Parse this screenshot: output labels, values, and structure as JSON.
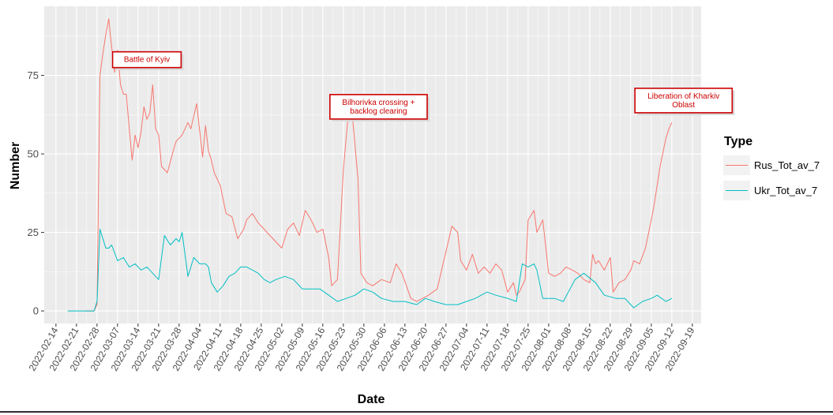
{
  "chart_data": {
    "type": "line",
    "xlabel": "Date",
    "ylabel": "Number",
    "x_ticks": [
      "2022-02-14",
      "2022-02-21",
      "2022-02-28",
      "2022-03-07",
      "2022-03-14",
      "2022-03-21",
      "2022-03-28",
      "2022-04-04",
      "2022-04-11",
      "2022-04-18",
      "2022-04-25",
      "2022-05-02",
      "2022-05-09",
      "2022-05-16",
      "2022-05-23",
      "2022-05-30",
      "2022-06-06",
      "2022-06-13",
      "2022-06-20",
      "2022-06-27",
      "2022-07-04",
      "2022-07-11",
      "2022-07-18",
      "2022-07-25",
      "2022-08-01",
      "2022-08-08",
      "2022-08-15",
      "2022-08-22",
      "2022-08-29",
      "2022-09-05",
      "2022-09-12",
      "2022-09-19"
    ],
    "y_ticks": [
      0,
      25,
      50,
      75
    ],
    "xlim": [
      "2022-02-10",
      "2022-09-22"
    ],
    "ylim": [
      -4,
      97
    ],
    "grid": true,
    "legend": {
      "title": "Type",
      "position": "right",
      "entries": [
        "Rus_Tot_av_7",
        "Ukr_Tot_av_7"
      ]
    },
    "colors": {
      "Rus_Tot_av_7": "#F8766D",
      "Ukr_Tot_av_7": "#00BFC4"
    },
    "annotations": [
      {
        "text": "Battle of Kyiv",
        "x": "2022-03-17",
        "y": 80
      },
      {
        "text": "Bilhorivka crossing +\nbacklog clearing",
        "x": "2022-06-04",
        "y": 65
      },
      {
        "text": "Liberation of Kharkiv\nOblast",
        "x": "2022-09-16",
        "y": 67
      }
    ],
    "series": [
      {
        "name": "Rus_Tot_av_7",
        "x": [
          "2022-02-24",
          "2022-02-27",
          "2022-02-28",
          "2022-03-01",
          "2022-03-02",
          "2022-03-03",
          "2022-03-04",
          "2022-03-05",
          "2022-03-06",
          "2022-03-07",
          "2022-03-08",
          "2022-03-09",
          "2022-03-10",
          "2022-03-11",
          "2022-03-12",
          "2022-03-13",
          "2022-03-14",
          "2022-03-15",
          "2022-03-16",
          "2022-03-17",
          "2022-03-18",
          "2022-03-19",
          "2022-03-20",
          "2022-03-21",
          "2022-03-22",
          "2022-03-24",
          "2022-03-26",
          "2022-03-27",
          "2022-03-29",
          "2022-03-31",
          "2022-04-01",
          "2022-04-03",
          "2022-04-05",
          "2022-04-06",
          "2022-04-07",
          "2022-04-08",
          "2022-04-09",
          "2022-04-11",
          "2022-04-13",
          "2022-04-15",
          "2022-04-17",
          "2022-04-19",
          "2022-04-20",
          "2022-04-22",
          "2022-04-24",
          "2022-04-26",
          "2022-04-28",
          "2022-04-30",
          "2022-05-02",
          "2022-05-04",
          "2022-05-06",
          "2022-05-08",
          "2022-05-10",
          "2022-05-12",
          "2022-05-14",
          "2022-05-16",
          "2022-05-18",
          "2022-05-19",
          "2022-05-21",
          "2022-05-23",
          "2022-05-25",
          "2022-05-26",
          "2022-05-28",
          "2022-05-29",
          "2022-05-31",
          "2022-06-02",
          "2022-06-05",
          "2022-06-08",
          "2022-06-10",
          "2022-06-12",
          "2022-06-15",
          "2022-06-17",
          "2022-06-19",
          "2022-06-21",
          "2022-06-24",
          "2022-06-27",
          "2022-06-29",
          "2022-07-01",
          "2022-07-02",
          "2022-07-04",
          "2022-07-06",
          "2022-07-08",
          "2022-07-10",
          "2022-07-12",
          "2022-07-14",
          "2022-07-16",
          "2022-07-18",
          "2022-07-20",
          "2022-07-21",
          "2022-07-22",
          "2022-07-24",
          "2022-07-25",
          "2022-07-27",
          "2022-07-28",
          "2022-07-30",
          "2022-08-01",
          "2022-08-03",
          "2022-08-05",
          "2022-08-07",
          "2022-08-09",
          "2022-08-11",
          "2022-08-13",
          "2022-08-15",
          "2022-08-16",
          "2022-08-17",
          "2022-08-18",
          "2022-08-20",
          "2022-08-22",
          "2022-08-23",
          "2022-08-25",
          "2022-08-27",
          "2022-08-29",
          "2022-08-30",
          "2022-09-01",
          "2022-09-03",
          "2022-09-05",
          "2022-09-06",
          "2022-09-08",
          "2022-09-10",
          "2022-09-11",
          "2022-09-12"
        ],
        "values": [
          0,
          0,
          2,
          75,
          82,
          88,
          93,
          84,
          76,
          83,
          72,
          69,
          69,
          58,
          48,
          56,
          52,
          57,
          65,
          61,
          63,
          72,
          58,
          56,
          46,
          44,
          51,
          54,
          56,
          60,
          58,
          66,
          49,
          59,
          51,
          48,
          44,
          40,
          31,
          30,
          23,
          26,
          29,
          31,
          28,
          26,
          24,
          22,
          20,
          26,
          28,
          24,
          32,
          29,
          25,
          26,
          17,
          8,
          10,
          45,
          66,
          63,
          42,
          12,
          9,
          8,
          10,
          9,
          15,
          12,
          4,
          3,
          4,
          5,
          7,
          19,
          27,
          25,
          16,
          13,
          18,
          12,
          14,
          12,
          15,
          13,
          6,
          9,
          5,
          6,
          10,
          29,
          32,
          25,
          29,
          12,
          11,
          12,
          14,
          13,
          12,
          10,
          9,
          18,
          15,
          16,
          13,
          17,
          6,
          9,
          10,
          13,
          16,
          15,
          20,
          29,
          34,
          46,
          55,
          58,
          60
        ]
      },
      {
        "name": "Ukr_Tot_av_7",
        "x": [
          "2022-02-18",
          "2022-02-27",
          "2022-02-28",
          "2022-03-01",
          "2022-03-02",
          "2022-03-03",
          "2022-03-04",
          "2022-03-05",
          "2022-03-07",
          "2022-03-09",
          "2022-03-11",
          "2022-03-13",
          "2022-03-15",
          "2022-03-17",
          "2022-03-18",
          "2022-03-20",
          "2022-03-21",
          "2022-03-23",
          "2022-03-25",
          "2022-03-27",
          "2022-03-28",
          "2022-03-29",
          "2022-03-31",
          "2022-04-02",
          "2022-04-04",
          "2022-04-06",
          "2022-04-07",
          "2022-04-08",
          "2022-04-10",
          "2022-04-12",
          "2022-04-14",
          "2022-04-16",
          "2022-04-18",
          "2022-04-20",
          "2022-04-22",
          "2022-04-24",
          "2022-04-26",
          "2022-04-28",
          "2022-04-30",
          "2022-05-03",
          "2022-05-06",
          "2022-05-09",
          "2022-05-12",
          "2022-05-15",
          "2022-05-18",
          "2022-05-21",
          "2022-05-24",
          "2022-05-27",
          "2022-05-30",
          "2022-06-02",
          "2022-06-05",
          "2022-06-09",
          "2022-06-13",
          "2022-06-17",
          "2022-06-20",
          "2022-06-23",
          "2022-06-27",
          "2022-07-01",
          "2022-07-04",
          "2022-07-07",
          "2022-07-11",
          "2022-07-14",
          "2022-07-18",
          "2022-07-21",
          "2022-07-23",
          "2022-07-25",
          "2022-07-27",
          "2022-07-28",
          "2022-07-30",
          "2022-08-03",
          "2022-08-06",
          "2022-08-10",
          "2022-08-13",
          "2022-08-17",
          "2022-08-20",
          "2022-08-24",
          "2022-08-27",
          "2022-08-30",
          "2022-09-02",
          "2022-09-05",
          "2022-09-07",
          "2022-09-10",
          "2022-09-12"
        ],
        "values": [
          0,
          0,
          3,
          26,
          23,
          20,
          20,
          21,
          16,
          17,
          14,
          15,
          13,
          14,
          13,
          11,
          10,
          24,
          21,
          23,
          22,
          25,
          11,
          17,
          15,
          15,
          14,
          9,
          6,
          8,
          11,
          12,
          14,
          14,
          13,
          12,
          10,
          9,
          10,
          11,
          10,
          7,
          7,
          7,
          5,
          3,
          4,
          5,
          7,
          6,
          4,
          3,
          3,
          2,
          4,
          3,
          2,
          2,
          3,
          4,
          6,
          5,
          4,
          3,
          15,
          14,
          15,
          13,
          4,
          4,
          3,
          10,
          12,
          9,
          5,
          4,
          4,
          1,
          3,
          4,
          5,
          3,
          4
        ]
      }
    ]
  }
}
